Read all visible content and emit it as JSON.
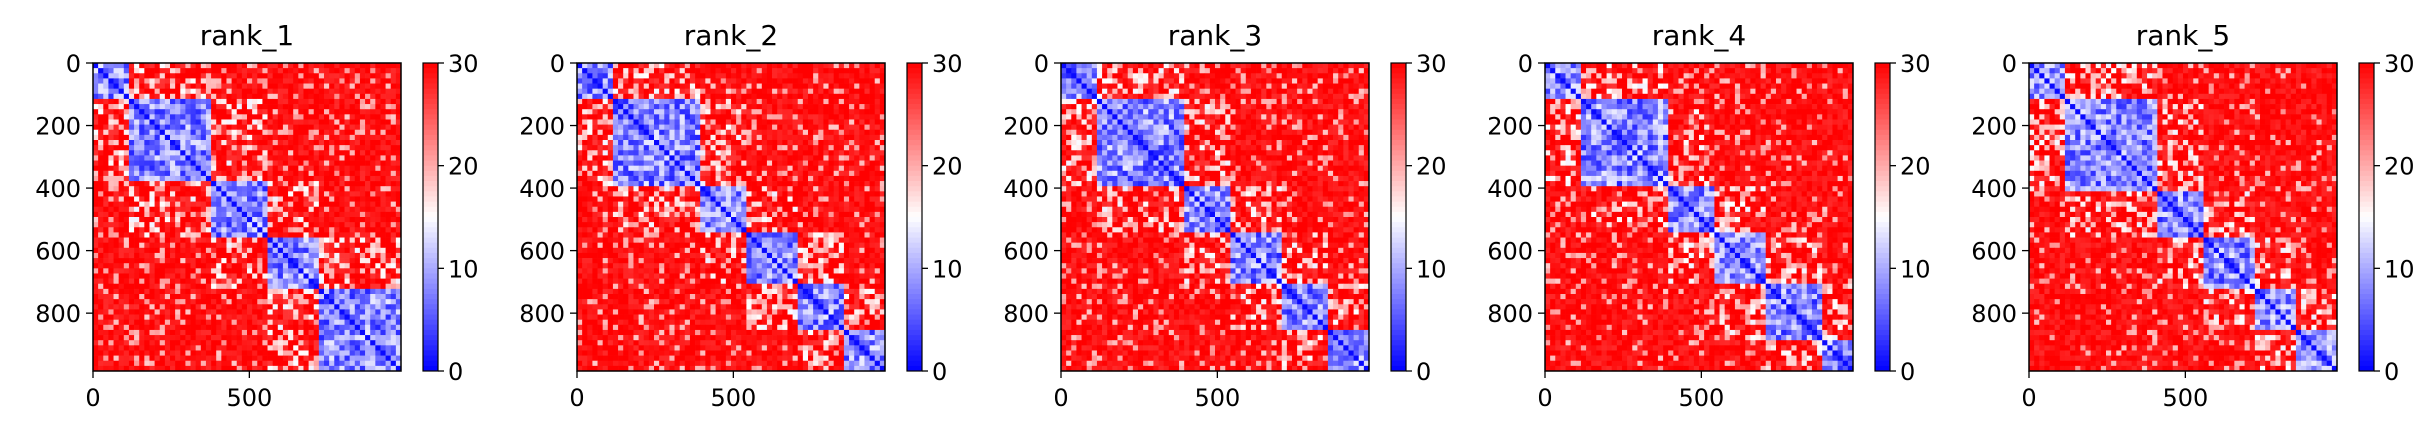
{
  "chart_data": [
    {
      "type": "heatmap",
      "title": "rank_1",
      "xticks": [
        0,
        500
      ],
      "yticks": [
        0,
        200,
        400,
        600,
        800
      ],
      "xlim": [
        0,
        985
      ],
      "ylim": [
        0,
        985
      ],
      "colorbar": {
        "min": 0,
        "max": 30,
        "ticks": [
          0,
          10,
          20,
          30
        ],
        "colormap": "bwr"
      },
      "domains": [
        [
          0,
          120
        ],
        [
          120,
          380
        ],
        [
          380,
          560
        ],
        [
          560,
          730
        ],
        [
          730,
          985
        ]
      ]
    },
    {
      "type": "heatmap",
      "title": "rank_2",
      "xticks": [
        0,
        500
      ],
      "yticks": [
        0,
        200,
        400,
        600,
        800
      ],
      "xlim": [
        0,
        985
      ],
      "ylim": [
        0,
        985
      ],
      "colorbar": {
        "min": 0,
        "max": 30,
        "ticks": [
          0,
          10,
          20,
          30
        ],
        "colormap": "bwr"
      },
      "domains": [
        [
          0,
          120
        ],
        [
          120,
          390
        ],
        [
          390,
          540
        ],
        [
          540,
          700
        ],
        [
          700,
          850
        ],
        [
          850,
          985
        ]
      ]
    },
    {
      "type": "heatmap",
      "title": "rank_3",
      "xticks": [
        0,
        500
      ],
      "yticks": [
        0,
        200,
        400,
        600,
        800
      ],
      "xlim": [
        0,
        985
      ],
      "ylim": [
        0,
        985
      ],
      "colorbar": {
        "min": 0,
        "max": 30,
        "ticks": [
          0,
          10,
          20,
          30
        ],
        "colormap": "bwr"
      },
      "domains": [
        [
          0,
          120
        ],
        [
          120,
          390
        ],
        [
          390,
          540
        ],
        [
          540,
          700
        ],
        [
          700,
          850
        ],
        [
          850,
          985
        ]
      ]
    },
    {
      "type": "heatmap",
      "title": "rank_4",
      "xticks": [
        0,
        500
      ],
      "yticks": [
        0,
        200,
        400,
        600,
        800
      ],
      "xlim": [
        0,
        985
      ],
      "ylim": [
        0,
        985
      ],
      "colorbar": {
        "min": 0,
        "max": 30,
        "ticks": [
          0,
          10,
          20,
          30
        ],
        "colormap": "bwr"
      },
      "domains": [
        [
          0,
          120
        ],
        [
          120,
          400
        ],
        [
          400,
          540
        ],
        [
          540,
          700
        ],
        [
          700,
          880
        ],
        [
          880,
          985
        ]
      ]
    },
    {
      "type": "heatmap",
      "title": "rank_5",
      "xticks": [
        0,
        500
      ],
      "yticks": [
        0,
        200,
        400,
        600,
        800
      ],
      "xlim": [
        0,
        985
      ],
      "ylim": [
        0,
        985
      ],
      "colorbar": {
        "min": 0,
        "max": 30,
        "ticks": [
          0,
          10,
          20,
          30
        ],
        "colormap": "bwr"
      },
      "domains": [
        [
          0,
          120
        ],
        [
          120,
          410
        ],
        [
          410,
          550
        ],
        [
          550,
          720
        ],
        [
          720,
          850
        ],
        [
          850,
          985
        ]
      ]
    }
  ]
}
